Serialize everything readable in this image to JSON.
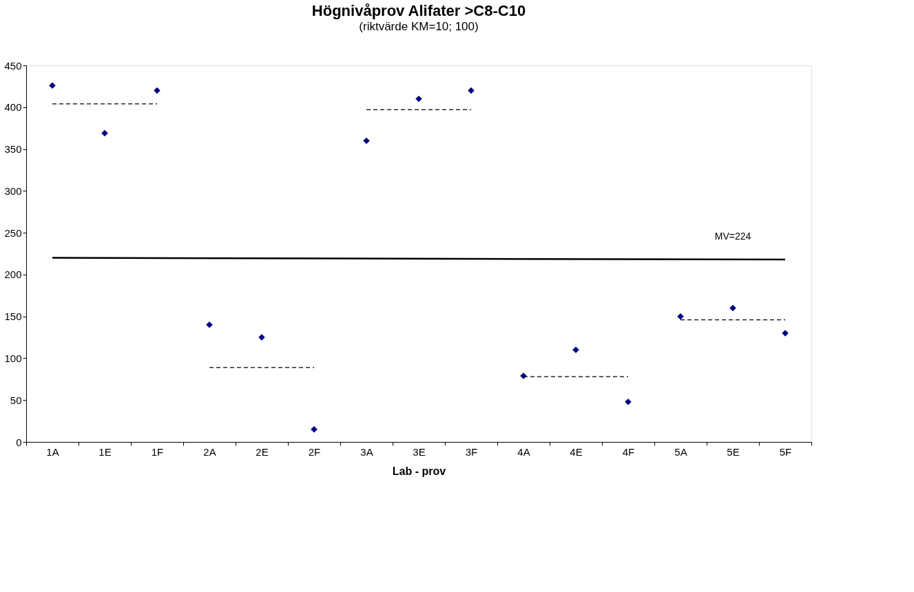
{
  "chart_data": {
    "type": "scatter",
    "title": "Högnivåprov Alifater >C8-C10",
    "subtitle": "(riktvärde KM=10; 100)",
    "xlabel": "Lab - prov",
    "categories": [
      "1A",
      "1E",
      "1F",
      "2A",
      "2E",
      "2F",
      "3A",
      "3E",
      "3F",
      "4A",
      "4E",
      "4F",
      "5A",
      "5E",
      "5F"
    ],
    "series": [
      {
        "color": "#000080",
        "marker": "diamond",
        "values": [
          426,
          369,
          420,
          140,
          125,
          15,
          360,
          410,
          420,
          79,
          110,
          48,
          150,
          160,
          130
        ]
      },
      {
        "type": "line",
        "color": "#000000",
        "line_style": "solid",
        "x": [
          "1A",
          "5F"
        ],
        "values": [
          220,
          218
        ]
      },
      {
        "type": "line",
        "color": "#000000",
        "line_style": "dashed",
        "x": [
          "1A",
          "1F"
        ],
        "values": [
          404,
          404
        ]
      },
      {
        "type": "line",
        "color": "#000000",
        "line_style": "dashed",
        "x": [
          "2A",
          "2F"
        ],
        "values": [
          89,
          89
        ]
      },
      {
        "type": "line",
        "color": "#000000",
        "line_style": "dashed",
        "x": [
          "3A",
          "3F"
        ],
        "values": [
          397,
          397
        ]
      },
      {
        "type": "line",
        "color": "#000000",
        "line_style": "dashed",
        "x": [
          "4A",
          "4F"
        ],
        "values": [
          78,
          78
        ]
      },
      {
        "type": "line",
        "color": "#000000",
        "line_style": "dashed",
        "x": [
          "5A",
          "5F"
        ],
        "values": [
          146,
          146
        ]
      }
    ],
    "annotations": [
      "MV=224"
    ],
    "ylim": [
      0,
      450
    ],
    "yticks": [
      0,
      50,
      100,
      150,
      200,
      250,
      300,
      350,
      400,
      450
    ],
    "grid": false
  }
}
